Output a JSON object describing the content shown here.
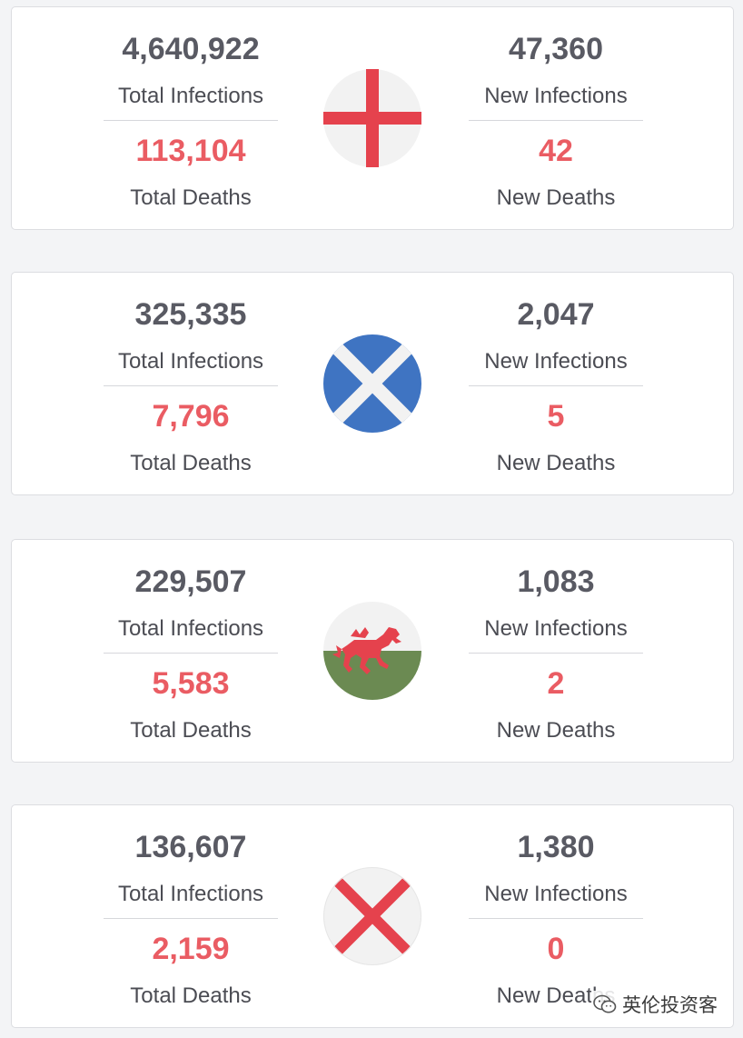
{
  "cards": [
    {
      "flag_icon": "england-flag-icon",
      "total_infections": "4,640,922",
      "total_infections_label": "Total Infections",
      "total_deaths": "113,104",
      "total_deaths_label": "Total Deaths",
      "new_infections": "47,360",
      "new_infections_label": "New Infections",
      "new_deaths": "42",
      "new_deaths_label": "New Deaths"
    },
    {
      "flag_icon": "scotland-flag-icon",
      "total_infections": "325,335",
      "total_infections_label": "Total Infections",
      "total_deaths": "7,796",
      "total_deaths_label": "Total Deaths",
      "new_infections": "2,047",
      "new_infections_label": "New Infections",
      "new_deaths": "5",
      "new_deaths_label": "New Deaths"
    },
    {
      "flag_icon": "wales-flag-icon",
      "total_infections": "229,507",
      "total_infections_label": "Total Infections",
      "total_deaths": "5,583",
      "total_deaths_label": "Total Deaths",
      "new_infections": "1,083",
      "new_infections_label": "New Infections",
      "new_deaths": "2",
      "new_deaths_label": "New Deaths"
    },
    {
      "flag_icon": "northern-ireland-saltire-flag-icon",
      "total_infections": "136,607",
      "total_infections_label": "Total Infections",
      "total_deaths": "2,159",
      "total_deaths_label": "Total Deaths",
      "new_infections": "1,380",
      "new_infections_label": "New Infections",
      "new_deaths": "0",
      "new_deaths_label": "New Deaths"
    }
  ],
  "colors": {
    "value_gray": "#595a63",
    "death_red": "#ea5c63",
    "flag_red": "#e5424d",
    "flag_blue": "#3f74c2",
    "flag_green": "#6b8a52"
  },
  "watermark": {
    "icon": "wechat-icon",
    "text": "英伦投资客"
  }
}
